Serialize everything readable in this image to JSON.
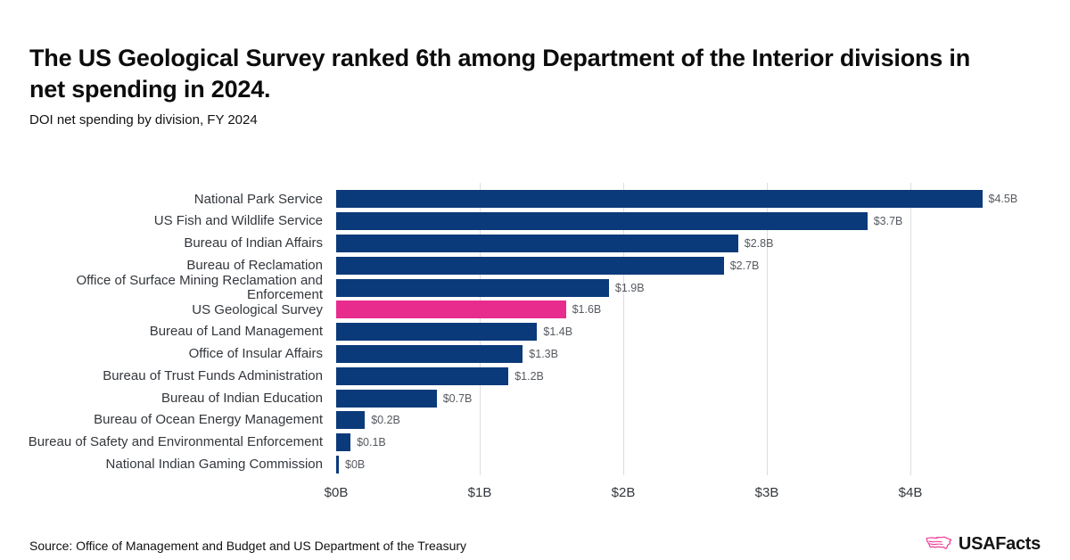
{
  "header": {
    "title": "The US Geological Survey ranked 6th among Department of the Interior divisions in net spending in 2024.",
    "subtitle": "DOI net spending by division, FY 2024"
  },
  "chart_data": {
    "type": "bar",
    "orientation": "horizontal",
    "title": "The US Geological Survey ranked 6th among Department of the Interior divisions in net spending in 2024.",
    "subtitle": "DOI net spending by division, FY 2024",
    "categories": [
      "National Park Service",
      "US Fish and Wildlife Service",
      "Bureau of Indian Affairs",
      "Bureau of Reclamation",
      "Office of Surface Mining Reclamation and Enforcement",
      "US Geological Survey",
      "Bureau of Land Management",
      "Office of Insular Affairs",
      "Bureau of Trust Funds Administration",
      "Bureau of Indian Education",
      "Bureau of Ocean Energy Management",
      "Bureau of Safety and Environmental Enforcement",
      "National Indian Gaming Commission"
    ],
    "values": [
      4.5,
      3.7,
      2.8,
      2.7,
      1.9,
      1.6,
      1.4,
      1.3,
      1.2,
      0.7,
      0.2,
      0.1,
      0
    ],
    "value_labels": [
      "$4.5B",
      "$3.7B",
      "$2.8B",
      "$2.7B",
      "$1.9B",
      "$1.6B",
      "$1.4B",
      "$1.3B",
      "$1.2B",
      "$0.7B",
      "$0.2B",
      "$0.1B",
      "$0B"
    ],
    "units": "billions USD",
    "highlight_category": "US Geological Survey",
    "highlight_index": 5,
    "x_ticks": [
      "$0B",
      "$1B",
      "$2B",
      "$3B",
      "$4B"
    ],
    "x_tick_values": [
      0,
      1,
      2,
      3,
      4
    ],
    "xlim": [
      0,
      4.7
    ],
    "ylabel": "",
    "xlabel": "",
    "grid": "vertical-only",
    "legend": "none",
    "colors": {
      "bar": "#0b3a7a",
      "highlight": "#e72c8d",
      "value_label": "#565a60",
      "gridline": "#dbdee2",
      "category_label": "#33373c"
    }
  },
  "footer": {
    "source": "Source: Office of Management and Budget and US Department of the Treasury",
    "logo_text": "USAFacts",
    "logo_icon": "usa-map-icon",
    "logo_pink": "#ee3d96",
    "logo_text_color": "#141414"
  }
}
